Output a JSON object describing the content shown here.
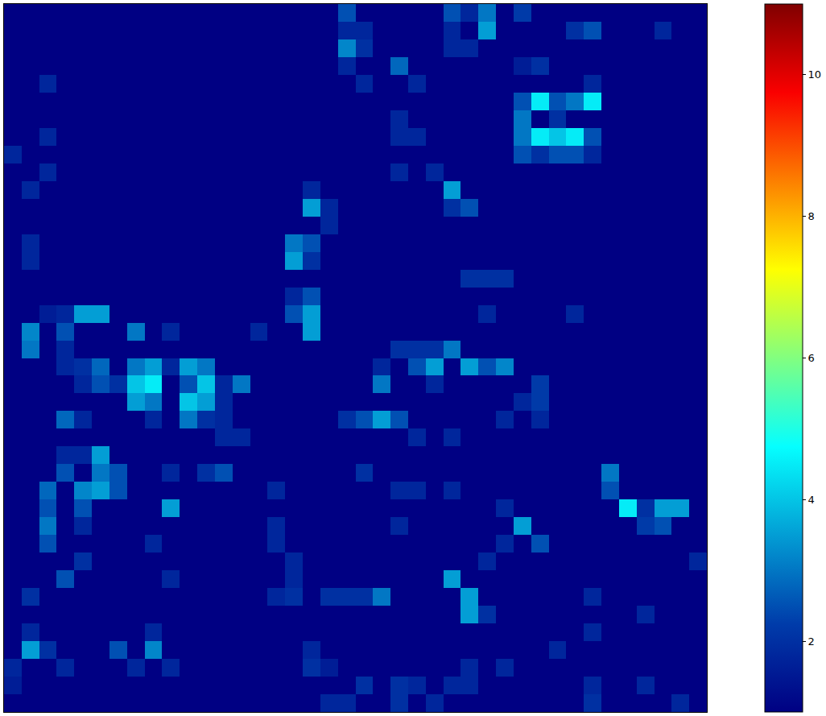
{
  "chart_data": {
    "type": "heatmap",
    "color": "jet",
    "tick_labels": false,
    "colorbar": {
      "range": [
        1,
        11
      ],
      "ticks": [
        2,
        4,
        6,
        8,
        10
      ]
    },
    "cells": [
      [
        1,
        1,
        1,
        1,
        1,
        1,
        1,
        1,
        1,
        1,
        1,
        1,
        1,
        1,
        1,
        1,
        1,
        1,
        1,
        2.5,
        1,
        1,
        1,
        1,
        1,
        2.5,
        1.8,
        3,
        1,
        2.2,
        1,
        1,
        1,
        1,
        1,
        1,
        1,
        1,
        1,
        1
      ],
      [
        1,
        1,
        1,
        1,
        1,
        1,
        1,
        1,
        1,
        1,
        1,
        1,
        1,
        1,
        1,
        1,
        1,
        1,
        1,
        1.8,
        1.8,
        1,
        1,
        1,
        1,
        1.8,
        1,
        3.5,
        1,
        1,
        1,
        1,
        2,
        2.5,
        1,
        1,
        1,
        1.8,
        1,
        1
      ],
      [
        1,
        1,
        1,
        1,
        1,
        1,
        1,
        1,
        1,
        1,
        1,
        1,
        1,
        1,
        1,
        1,
        1,
        1,
        1,
        3.2,
        2,
        1,
        1,
        1,
        1,
        1.8,
        1.8,
        1,
        1,
        1,
        1,
        1,
        1,
        1,
        1,
        1,
        1,
        1,
        1,
        1
      ],
      [
        1,
        1,
        1,
        1,
        1,
        1,
        1,
        1,
        1,
        1,
        1,
        1,
        1,
        1,
        1,
        1,
        1,
        1,
        1,
        1.8,
        1,
        1,
        2.8,
        1,
        1,
        1,
        1,
        1,
        1,
        1.6,
        2,
        1,
        1,
        1,
        1,
        1,
        1,
        1,
        1,
        1
      ],
      [
        1,
        1,
        1.8,
        1,
        1,
        1,
        1,
        1,
        1,
        1,
        1,
        1,
        1,
        1,
        1,
        1,
        1,
        1,
        1,
        1,
        1.8,
        1,
        1,
        1.8,
        1,
        1,
        1,
        1,
        1,
        1,
        1,
        1,
        1,
        1.8,
        1,
        1,
        1,
        1,
        1,
        1
      ],
      [
        1,
        1,
        1,
        1,
        1,
        1,
        1,
        1,
        1,
        1,
        1,
        1,
        1,
        1,
        1,
        1,
        1,
        1,
        1,
        1,
        1,
        1,
        1,
        1,
        1,
        1,
        1,
        1,
        1,
        2.5,
        4.5,
        2.5,
        3,
        4.5,
        1,
        1,
        1,
        1,
        1,
        1
      ],
      [
        1,
        1,
        1,
        1,
        1,
        1,
        1,
        1,
        1,
        1,
        1,
        1,
        1,
        1,
        1,
        1,
        1,
        1,
        1,
        1,
        1,
        1,
        1.8,
        1,
        1,
        1,
        1,
        1,
        1,
        3,
        1,
        2,
        1,
        1,
        1,
        1,
        1,
        1,
        1,
        1
      ],
      [
        1,
        1,
        1.8,
        1,
        1,
        1,
        1,
        1,
        1,
        1,
        1,
        1,
        1,
        1,
        1,
        1,
        1,
        1,
        1,
        1,
        1,
        1,
        1.8,
        1.8,
        1,
        1,
        1,
        1,
        1,
        3,
        4.5,
        4,
        4.5,
        2.5,
        1,
        1,
        1,
        1,
        1,
        1
      ],
      [
        1.8,
        1,
        1,
        1,
        1,
        1,
        1,
        1,
        1,
        1,
        1,
        1,
        1,
        1,
        1,
        1,
        1,
        1,
        1,
        1,
        1,
        1,
        1,
        1,
        1,
        1,
        1,
        1,
        1,
        2.5,
        2,
        2.5,
        2.5,
        1.8,
        1,
        1,
        1,
        1,
        1,
        1
      ],
      [
        1,
        1,
        1.8,
        1,
        1,
        1,
        1,
        1,
        1,
        1,
        1,
        1,
        1,
        1,
        1,
        1,
        1,
        1,
        1,
        1,
        1,
        1,
        1.8,
        1,
        1.8,
        1,
        1,
        1,
        1,
        1,
        1,
        1,
        1,
        1,
        1,
        1,
        1,
        1,
        1,
        1
      ],
      [
        1,
        1.8,
        1,
        1,
        1,
        1,
        1,
        1,
        1,
        1,
        1,
        1,
        1,
        1,
        1,
        1,
        1,
        1.8,
        1,
        1,
        1,
        1,
        1,
        1,
        1,
        3.5,
        1,
        1,
        1,
        1,
        1,
        1,
        1,
        1,
        1,
        1,
        1,
        1,
        1,
        1
      ],
      [
        1,
        1,
        1,
        1,
        1,
        1,
        1,
        1,
        1,
        1,
        1,
        1,
        1,
        1,
        1,
        1,
        1,
        3.5,
        1.8,
        1,
        1,
        1,
        1,
        1,
        1,
        2,
        2.5,
        1,
        1,
        1,
        1,
        1,
        1,
        1,
        1,
        1,
        1,
        1,
        1,
        1
      ],
      [
        1,
        1,
        1,
        1,
        1,
        1,
        1,
        1,
        1,
        1,
        1,
        1,
        1,
        1,
        1,
        1,
        1,
        1,
        1.8,
        1,
        1,
        1,
        1,
        1,
        1,
        1,
        1,
        1,
        1,
        1,
        1,
        1,
        1,
        1,
        1,
        1,
        1,
        1,
        1,
        1
      ],
      [
        1,
        1.8,
        1,
        1,
        1,
        1,
        1,
        1,
        1,
        1,
        1,
        1,
        1,
        1,
        1,
        1,
        3,
        2.5,
        1,
        1,
        1,
        1,
        1,
        1,
        1,
        1,
        1,
        1,
        1,
        1,
        1,
        1,
        1,
        1,
        1,
        1,
        1,
        1,
        1,
        1
      ],
      [
        1,
        1.8,
        1,
        1,
        1,
        1,
        1,
        1,
        1,
        1,
        1,
        1,
        1,
        1,
        1,
        1,
        3.5,
        2,
        1,
        1,
        1,
        1,
        1,
        1,
        1,
        1,
        1,
        1,
        1,
        1,
        1,
        1,
        1,
        1,
        1,
        1,
        1,
        1,
        1,
        1
      ],
      [
        1,
        1,
        1,
        1,
        1,
        1,
        1,
        1,
        1,
        1,
        1,
        1,
        1,
        1,
        1,
        1,
        1,
        1,
        1,
        1,
        1,
        1,
        1,
        1,
        1,
        1,
        2,
        2,
        2,
        1,
        1,
        1,
        1,
        1,
        1,
        1,
        1,
        1,
        1,
        1
      ],
      [
        1,
        1,
        1,
        1,
        1,
        1,
        1,
        1,
        1,
        1,
        1,
        1,
        1,
        1,
        1,
        1,
        1.8,
        2.5,
        1,
        1,
        1,
        1,
        1,
        1,
        1,
        1,
        1,
        1,
        1,
        1,
        1,
        1,
        1,
        1,
        1,
        1,
        1,
        1,
        1,
        1
      ],
      [
        1,
        1,
        1.6,
        1.8,
        3.5,
        3.5,
        1,
        1,
        1,
        1,
        1,
        1,
        1,
        1,
        1,
        1,
        2.5,
        3.5,
        1,
        1,
        1,
        1,
        1,
        1,
        1,
        1,
        1,
        1.8,
        1,
        1,
        1,
        1,
        1.8,
        1,
        1,
        1,
        1,
        1,
        1,
        1
      ],
      [
        1,
        3.2,
        1,
        2.5,
        1,
        1,
        1,
        3,
        1,
        1.8,
        1,
        1,
        1,
        1,
        1.8,
        1,
        1,
        3.5,
        1,
        1,
        1,
        1,
        1,
        1,
        1,
        1,
        1,
        1,
        1,
        1,
        1,
        1,
        1,
        1,
        1,
        1,
        1,
        1,
        1,
        1
      ],
      [
        1,
        3,
        1,
        1.8,
        1,
        1,
        1,
        1,
        1,
        1,
        1,
        1,
        1,
        1,
        1,
        1,
        1,
        1,
        1,
        1,
        1,
        1,
        2,
        2,
        2,
        3,
        1,
        1,
        1,
        1,
        1,
        1,
        1,
        1,
        1,
        1,
        1,
        1,
        1,
        1
      ],
      [
        1,
        1,
        1,
        1.8,
        2,
        2.8,
        1,
        3,
        3.5,
        1.8,
        3.5,
        3,
        1,
        1,
        1,
        1,
        1,
        1,
        1,
        1,
        1,
        1.8,
        1,
        2.5,
        3.5,
        1,
        3.5,
        2.5,
        3.2,
        1,
        1,
        1,
        1,
        1,
        1,
        1,
        1,
        1,
        1,
        1
      ],
      [
        1,
        1,
        1,
        1,
        1.8,
        2.5,
        2,
        4,
        4.5,
        1,
        2.5,
        4,
        1.8,
        3,
        1,
        1,
        1,
        1,
        1,
        1,
        1,
        3,
        1,
        1,
        1.8,
        1,
        1,
        1,
        1,
        1,
        2.2,
        1,
        1,
        1,
        1,
        1,
        1,
        1,
        1,
        1
      ],
      [
        1,
        1,
        1,
        1,
        1,
        1,
        1,
        3.5,
        3,
        1,
        4,
        3.5,
        1.8,
        1,
        1,
        1,
        1,
        1,
        1,
        1,
        1,
        1,
        1,
        1,
        1,
        1,
        1,
        1,
        1,
        1.8,
        2.2,
        1,
        1,
        1,
        1,
        1,
        1,
        1,
        1,
        1
      ],
      [
        1,
        1,
        1,
        2.8,
        1.8,
        1,
        1,
        1,
        1.8,
        1,
        3,
        2,
        1.8,
        1,
        1,
        1,
        1,
        1,
        1,
        2,
        2.5,
        3.5,
        2.5,
        1,
        1,
        1,
        1,
        1,
        1.8,
        1,
        1.8,
        1,
        1,
        1,
        1,
        1,
        1,
        1,
        1,
        1
      ],
      [
        1,
        1,
        1,
        1,
        1,
        1,
        1,
        1,
        1,
        1,
        1,
        1,
        1.8,
        1.8,
        1,
        1,
        1,
        1,
        1,
        1,
        1,
        1,
        1,
        1.8,
        1,
        1.8,
        1,
        1,
        1,
        1,
        1,
        1,
        1,
        1,
        1,
        1,
        1,
        1,
        1,
        1
      ],
      [
        1,
        1,
        1,
        1.8,
        1.8,
        3.5,
        1,
        1,
        1,
        1,
        1,
        1,
        1,
        1,
        1,
        1,
        1,
        1,
        1,
        1,
        1,
        1,
        1,
        1,
        1,
        1,
        1,
        1,
        1,
        1,
        1,
        1,
        1,
        1,
        1,
        1,
        1,
        1,
        1,
        1
      ],
      [
        1,
        1,
        1,
        2.5,
        1,
        3,
        2.5,
        1,
        1,
        1.8,
        1,
        2,
        2.5,
        1,
        1,
        1,
        1,
        1,
        1,
        1,
        2,
        1,
        1,
        1,
        1,
        1,
        1,
        1,
        1,
        1,
        1,
        1,
        1,
        1,
        3,
        1,
        1,
        1,
        1,
        1
      ],
      [
        1,
        1,
        2.8,
        1,
        3.2,
        3.5,
        2.5,
        1,
        1,
        1,
        1,
        1,
        1,
        1,
        1,
        1.8,
        1,
        1,
        1,
        1,
        1,
        1,
        1.8,
        1.8,
        1,
        1.8,
        1,
        1,
        1,
        1,
        1,
        1,
        1,
        1,
        2.5,
        1,
        1,
        1,
        1,
        1
      ],
      [
        1,
        1,
        2.5,
        1,
        2.5,
        1,
        1,
        1,
        1,
        3.5,
        1,
        1,
        1,
        1,
        1,
        1,
        1,
        1,
        1,
        1,
        1,
        1,
        1,
        1,
        1,
        1,
        1,
        1,
        1.8,
        1,
        1,
        1,
        1,
        1,
        1,
        4.5,
        2,
        3.5,
        3.5,
        1
      ],
      [
        1,
        1,
        3,
        1,
        1.8,
        1,
        1,
        1,
        1,
        1,
        1,
        1,
        1,
        1,
        1,
        1.8,
        1,
        1,
        1,
        1,
        1,
        1,
        1.8,
        1,
        1,
        1,
        1,
        1,
        1,
        3.5,
        1,
        1,
        1,
        1,
        1,
        1,
        2.2,
        2.5,
        1,
        1
      ],
      [
        1,
        1,
        2.5,
        1,
        1,
        1,
        1,
        1,
        1.8,
        1,
        1,
        1,
        1,
        1,
        1,
        1.8,
        1,
        1,
        1,
        1,
        1,
        1,
        1,
        1,
        1,
        1,
        1,
        1,
        1.8,
        1,
        2.5,
        1,
        1,
        1,
        1,
        1,
        1,
        1,
        1,
        1
      ],
      [
        1,
        1,
        1,
        1,
        2,
        1,
        1,
        1,
        1,
        1,
        1,
        1,
        1,
        1,
        1,
        1,
        1.8,
        1,
        1,
        1,
        1,
        1,
        1,
        1,
        1,
        1,
        1,
        1.8,
        1,
        1,
        1,
        1,
        1,
        1,
        1,
        1,
        1,
        1,
        1,
        1.8
      ],
      [
        1,
        1,
        1,
        2.5,
        1,
        1,
        1,
        1,
        1,
        1.8,
        1,
        1,
        1,
        1,
        1,
        1,
        1.8,
        1,
        1,
        1,
        1,
        1,
        1,
        1,
        1,
        3.5,
        1,
        1,
        1,
        1,
        1,
        1,
        1,
        1,
        1,
        1,
        1,
        1,
        1,
        1
      ],
      [
        1,
        2,
        1,
        1,
        1,
        1,
        1,
        1,
        1,
        1,
        1,
        1,
        1,
        1,
        1,
        1.8,
        2,
        1,
        2,
        2,
        2,
        3,
        1,
        1,
        1,
        1,
        3.5,
        1,
        1,
        1,
        1,
        1,
        1,
        1.8,
        1,
        1,
        1,
        1,
        1,
        1
      ],
      [
        1,
        1,
        1,
        1,
        1,
        1,
        1,
        1,
        1,
        1,
        1,
        1,
        1,
        1,
        1,
        1,
        1,
        1,
        1,
        1,
        1,
        1,
        1,
        1,
        1,
        1,
        3.5,
        2,
        1,
        1,
        1,
        1,
        1,
        1,
        1,
        1,
        1.8,
        1,
        1,
        1
      ],
      [
        1,
        1.8,
        1,
        1,
        1,
        1,
        1,
        1,
        1.8,
        1,
        1,
        1,
        1,
        1,
        1,
        1,
        1,
        1,
        1,
        1,
        1,
        1,
        1,
        1,
        1,
        1,
        1,
        1,
        1,
        1,
        1,
        1,
        1,
        1.8,
        1,
        1,
        1,
        1,
        1,
        1
      ],
      [
        1,
        3.5,
        2,
        1,
        1,
        1,
        2.5,
        1,
        3.2,
        1,
        1,
        1,
        1,
        1,
        1,
        1,
        1,
        1.8,
        1,
        1,
        1,
        1,
        1,
        1,
        1,
        1,
        1,
        1,
        1,
        1,
        1,
        1.8,
        1,
        1,
        1,
        1,
        1,
        1,
        1,
        1
      ],
      [
        1.8,
        1,
        1,
        1.8,
        1,
        1,
        1,
        1.8,
        1,
        1.8,
        1,
        1,
        1,
        1,
        1,
        1,
        1,
        2,
        1.6,
        1,
        1,
        1,
        1,
        1,
        1,
        1,
        1.8,
        1,
        1.8,
        1,
        1,
        1,
        1,
        1,
        1,
        1,
        1,
        1,
        1,
        1
      ],
      [
        1.6,
        1,
        1,
        1,
        1,
        1,
        1,
        1,
        1,
        1,
        1,
        1,
        1,
        1,
        1,
        1,
        1,
        1,
        1,
        1,
        2,
        1,
        2,
        1.8,
        1,
        1.8,
        1.8,
        1,
        1,
        1,
        1,
        1,
        1,
        1.8,
        1,
        1,
        1.8,
        1,
        1,
        1
      ],
      [
        1,
        1,
        1,
        1,
        1,
        1,
        1,
        1,
        1,
        1,
        1,
        1,
        1,
        1,
        1,
        1,
        1,
        1,
        1.8,
        1.8,
        1,
        1,
        2,
        1,
        1.8,
        1,
        1,
        1,
        1,
        1,
        1,
        1,
        1,
        2,
        1,
        1,
        1,
        1,
        1.8,
        1
      ]
    ]
  }
}
